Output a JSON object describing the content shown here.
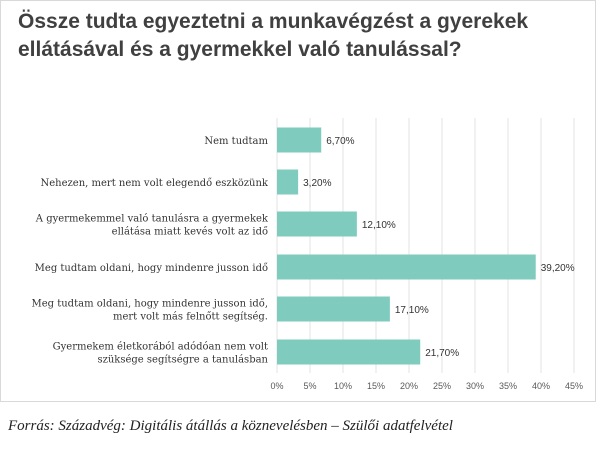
{
  "chart_data": {
    "type": "bar",
    "orientation": "horizontal",
    "title": "Össze tudta egyeztetni a munkavégzést a gyerekek ellátásával és a gyermekkel való tanulással?",
    "categories": [
      [
        "Nem tudtam"
      ],
      [
        "Nehezen, mert nem volt elegendő eszközünk"
      ],
      [
        "A gyermekemmel való tanulásra a gyermekek",
        "ellátása miatt kevés volt az idő"
      ],
      [
        "Meg tudtam oldani, hogy mindenre jusson idő"
      ],
      [
        "Meg tudtam oldani, hogy mindenre jusson idő,",
        "mert volt más felnőtt segítség."
      ],
      [
        "Gyermekem életkorából adódóan nem volt",
        "szüksége segítségre a tanulásban"
      ]
    ],
    "values": [
      6.7,
      3.2,
      12.1,
      39.2,
      17.1,
      21.7
    ],
    "value_labels": [
      "6,70%",
      "3,20%",
      "12,10%",
      "39,20%",
      "17,10%",
      "21,70%"
    ],
    "xlim": [
      0,
      45
    ],
    "x_ticks": [
      "0%",
      "5%",
      "10%",
      "15%",
      "20%",
      "25%",
      "30%",
      "35%",
      "40%",
      "45%"
    ],
    "bar_color": "#7fcbbe",
    "gridlines": true,
    "legend": "none"
  },
  "source": "Forrás: Századvég: Digitális átállás a köznevelésben – Szülői adatfelvétel"
}
